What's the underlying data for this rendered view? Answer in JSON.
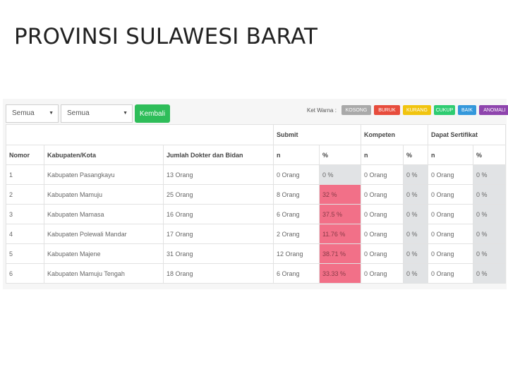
{
  "title": "PROVINSI SULAWESI BARAT",
  "filters": [
    {
      "selected": "Semua"
    },
    {
      "selected": "Semua"
    }
  ],
  "back_label": "Kembali",
  "legend": {
    "label": "Ket Warna :",
    "items": [
      {
        "label": "KOSONG",
        "color": "#a9a9a9"
      },
      {
        "label": "BURUK",
        "color": "#e74c3c"
      },
      {
        "label": "KURANG",
        "color": "#f1c40f"
      },
      {
        "label": "CUKUP",
        "color": "#2ecc71"
      },
      {
        "label": "BAIK",
        "color": "#3498db"
      },
      {
        "label": "ANOMALI",
        "color": "#8e44ad"
      }
    ]
  },
  "table": {
    "groups": [
      "Submit",
      "Kompeten",
      "Dapat Sertifikat"
    ],
    "columns": [
      "Nomor",
      "Kabupaten/Kota",
      "Jumlah Dokter dan Bidan",
      "n",
      "%",
      "n",
      "%",
      "n",
      "%"
    ],
    "rows": [
      [
        "1",
        "Kabupaten Pasangkayu",
        "13 Orang",
        "0 Orang",
        "0 %",
        "0 Orang",
        "0 %",
        "0 Orang",
        "0 %"
      ],
      [
        "2",
        "Kabupaten Mamuju",
        "25 Orang",
        "8 Orang",
        "32 %",
        "0 Orang",
        "0 %",
        "0 Orang",
        "0 %"
      ],
      [
        "3",
        "Kabupaten Mamasa",
        "16 Orang",
        "6 Orang",
        "37.5 %",
        "0 Orang",
        "0 %",
        "0 Orang",
        "0 %"
      ],
      [
        "4",
        "Kabupaten Polewali Mandar",
        "17 Orang",
        "2 Orang",
        "11.76 %",
        "0 Orang",
        "0 %",
        "0 Orang",
        "0 %"
      ],
      [
        "5",
        "Kabupaten Majene",
        "31 Orang",
        "12 Orang",
        "38.71 %",
        "0 Orang",
        "0 %",
        "0 Orang",
        "0 %"
      ],
      [
        "6",
        "Kabupaten Mamuju Tengah",
        "18 Orang",
        "6 Orang",
        "33.33 %",
        "0 Orang",
        "0 %",
        "0 Orang",
        "0 %"
      ]
    ],
    "cell_status": [
      [
        "",
        "",
        "",
        "",
        "grey",
        "",
        "grey",
        "",
        "grey"
      ],
      [
        "",
        "",
        "",
        "",
        "red",
        "",
        "grey",
        "",
        "grey"
      ],
      [
        "",
        "",
        "",
        "",
        "red",
        "",
        "grey",
        "",
        "grey"
      ],
      [
        "",
        "",
        "",
        "",
        "red",
        "",
        "grey",
        "",
        "grey"
      ],
      [
        "",
        "",
        "",
        "",
        "red",
        "",
        "grey",
        "",
        "grey"
      ],
      [
        "",
        "",
        "",
        "",
        "red",
        "",
        "grey",
        "",
        "grey"
      ]
    ]
  }
}
